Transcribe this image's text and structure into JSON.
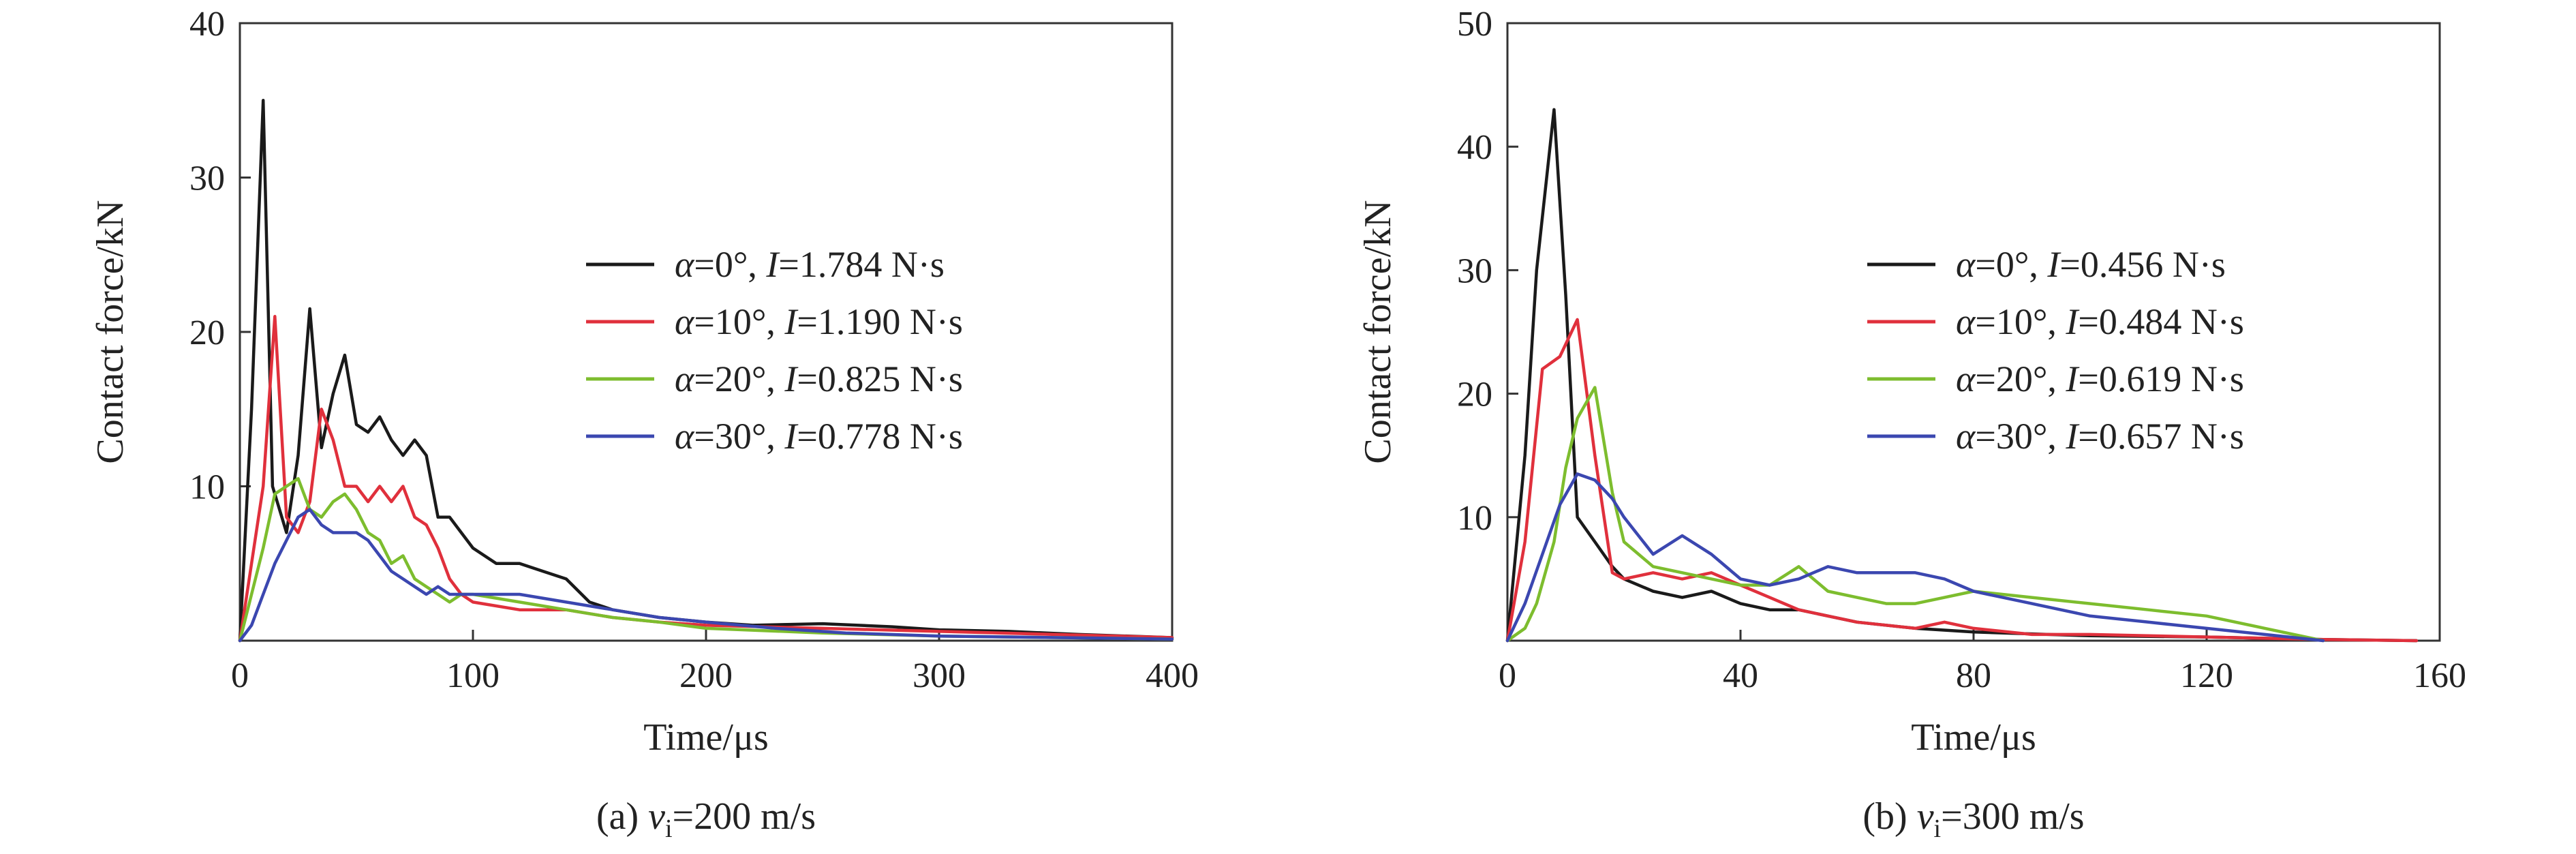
{
  "chart_data": [
    {
      "type": "line",
      "caption_prefix": "(a) ",
      "caption_var": "v",
      "caption_sub": "i",
      "caption_suffix": "=200 m/s",
      "xlabel": "Time/μs",
      "ylabel": "Contact force/kN",
      "xlim": [
        0,
        400
      ],
      "ylim": [
        0,
        40
      ],
      "xticks": [
        0,
        100,
        200,
        300,
        400
      ],
      "yticks": [
        10,
        20,
        30,
        40
      ],
      "grid": false,
      "legend_position": "right",
      "series": [
        {
          "color": "#1a1a1a",
          "legend": {
            "a": "α",
            "aval": "=0°, ",
            "i": "I",
            "ival": "=1.784 N·s"
          },
          "x": [
            0,
            5,
            10,
            14,
            20,
            25,
            30,
            35,
            40,
            45,
            50,
            55,
            60,
            65,
            70,
            75,
            80,
            85,
            90,
            95,
            100,
            110,
            120,
            130,
            140,
            150,
            160,
            180,
            200,
            220,
            250,
            280,
            300,
            330,
            360,
            400
          ],
          "y": [
            0,
            15,
            35,
            10,
            7,
            12,
            21.5,
            12.5,
            16,
            18.5,
            14,
            13.5,
            14.5,
            13,
            12,
            13,
            12,
            8,
            8,
            7,
            6,
            5,
            5,
            4.5,
            4,
            2.5,
            2,
            1.5,
            1.2,
            1,
            1.1,
            0.9,
            0.7,
            0.6,
            0.4,
            0.2
          ]
        },
        {
          "color": "#e0303c",
          "legend": {
            "a": "α",
            "aval": "=10°, ",
            "i": "I",
            "ival": "=1.190 N·s"
          },
          "x": [
            0,
            5,
            10,
            15,
            20,
            25,
            30,
            35,
            40,
            45,
            50,
            55,
            60,
            65,
            70,
            75,
            80,
            85,
            90,
            95,
            100,
            120,
            140,
            160,
            180,
            200,
            250,
            300,
            350,
            400
          ],
          "y": [
            0,
            5,
            10,
            21,
            8,
            7,
            9,
            15,
            13,
            10,
            10,
            9,
            10,
            9,
            10,
            8,
            7.5,
            6,
            4,
            3,
            2.5,
            2,
            2,
            1.5,
            1.2,
            1,
            0.8,
            0.6,
            0.4,
            0.2
          ]
        },
        {
          "color": "#7dbd2e",
          "legend": {
            "a": "α",
            "aval": "=20°, ",
            "i": "I",
            "ival": "=0.825 N·s"
          },
          "x": [
            0,
            5,
            10,
            15,
            20,
            25,
            30,
            35,
            40,
            45,
            50,
            55,
            60,
            65,
            70,
            75,
            80,
            85,
            90,
            95,
            100,
            120,
            140,
            160,
            180,
            200,
            250,
            300,
            400
          ],
          "y": [
            0,
            3,
            6,
            9.5,
            10,
            10.5,
            8.5,
            8,
            9,
            9.5,
            8.5,
            7,
            6.5,
            5,
            5.5,
            4,
            3.5,
            3,
            2.5,
            3,
            3,
            2.5,
            2,
            1.5,
            1.2,
            0.8,
            0.5,
            0.3,
            0.1
          ]
        },
        {
          "color": "#3b47b0",
          "legend": {
            "a": "α",
            "aval": "=30°, ",
            "i": "I",
            "ival": "=0.778 N·s"
          },
          "x": [
            0,
            5,
            10,
            15,
            20,
            25,
            30,
            35,
            40,
            45,
            50,
            55,
            60,
            65,
            70,
            75,
            80,
            85,
            90,
            95,
            100,
            110,
            120,
            140,
            160,
            180,
            200,
            230,
            260,
            300,
            400
          ],
          "y": [
            0,
            1,
            3,
            5,
            6.5,
            8,
            8.5,
            7.5,
            7,
            7,
            7,
            6.5,
            5.5,
            4.5,
            4,
            3.5,
            3,
            3.5,
            3,
            3,
            3,
            3,
            3,
            2.5,
            2,
            1.5,
            1.2,
            0.8,
            0.5,
            0.3,
            0.1
          ]
        }
      ]
    },
    {
      "type": "line",
      "caption_prefix": "(b) ",
      "caption_var": "v",
      "caption_sub": "i",
      "caption_suffix": "=300 m/s",
      "xlabel": "Time/μs",
      "ylabel": "Contact force/kN",
      "xlim": [
        0,
        160
      ],
      "ylim": [
        0,
        50
      ],
      "xticks": [
        0,
        40,
        80,
        120,
        160
      ],
      "yticks": [
        10,
        20,
        30,
        40,
        50
      ],
      "grid": false,
      "legend_position": "right",
      "series": [
        {
          "color": "#1a1a1a",
          "legend": {
            "a": "α",
            "aval": "=0°, ",
            "i": "I",
            "ival": "=0.456 N·s"
          },
          "x": [
            0,
            3,
            5,
            8,
            10,
            12,
            15,
            18,
            20,
            25,
            30,
            35,
            40,
            45,
            50,
            55,
            60,
            70,
            80,
            100,
            120,
            140,
            156
          ],
          "y": [
            0,
            15,
            30,
            43,
            28,
            10,
            8,
            6,
            5,
            4,
            3.5,
            4,
            3,
            2.5,
            2.5,
            2,
            1.5,
            1,
            0.7,
            0.4,
            0.3,
            0.1,
            0
          ]
        },
        {
          "color": "#e0303c",
          "legend": {
            "a": "α",
            "aval": "=10°, ",
            "i": "I",
            "ival": "=0.484 N·s"
          },
          "x": [
            0,
            3,
            6,
            9,
            12,
            15,
            18,
            20,
            25,
            30,
            35,
            40,
            45,
            50,
            55,
            60,
            70,
            75,
            80,
            90,
            100,
            110,
            120,
            140,
            156
          ],
          "y": [
            0,
            8,
            22,
            23,
            26,
            15,
            5.5,
            5,
            5.5,
            5,
            5.5,
            4.5,
            3.5,
            2.5,
            2,
            1.5,
            1,
            1.5,
            1,
            0.5,
            0.5,
            0.4,
            0.3,
            0.1,
            0
          ]
        },
        {
          "color": "#7dbd2e",
          "legend": {
            "a": "α",
            "aval": "=20°, ",
            "i": "I",
            "ival": "=0.619 N·s"
          },
          "x": [
            0,
            3,
            5,
            8,
            10,
            12,
            15,
            18,
            20,
            25,
            30,
            35,
            40,
            45,
            50,
            55,
            60,
            65,
            70,
            75,
            80,
            90,
            100,
            110,
            120,
            130,
            140
          ],
          "y": [
            0,
            1,
            3,
            8,
            14,
            18,
            20.5,
            12,
            8,
            6,
            5.5,
            5,
            4.5,
            4.5,
            6,
            4,
            3.5,
            3,
            3,
            3.5,
            4,
            3.5,
            3,
            2.5,
            2,
            1,
            0
          ]
        },
        {
          "color": "#3b47b0",
          "legend": {
            "a": "α",
            "aval": "=30°, ",
            "i": "I",
            "ival": "=0.657 N·s"
          },
          "x": [
            0,
            3,
            6,
            9,
            12,
            15,
            18,
            20,
            25,
            30,
            35,
            40,
            45,
            50,
            55,
            60,
            65,
            70,
            75,
            80,
            85,
            90,
            95,
            100,
            110,
            120,
            130,
            140
          ],
          "y": [
            0,
            3,
            7,
            11,
            13.5,
            13,
            11.5,
            10,
            7,
            8.5,
            7,
            5,
            4.5,
            5,
            6,
            5.5,
            5.5,
            5.5,
            5,
            4,
            3.5,
            3,
            2.5,
            2,
            1.5,
            1,
            0.5,
            0
          ]
        }
      ]
    }
  ]
}
